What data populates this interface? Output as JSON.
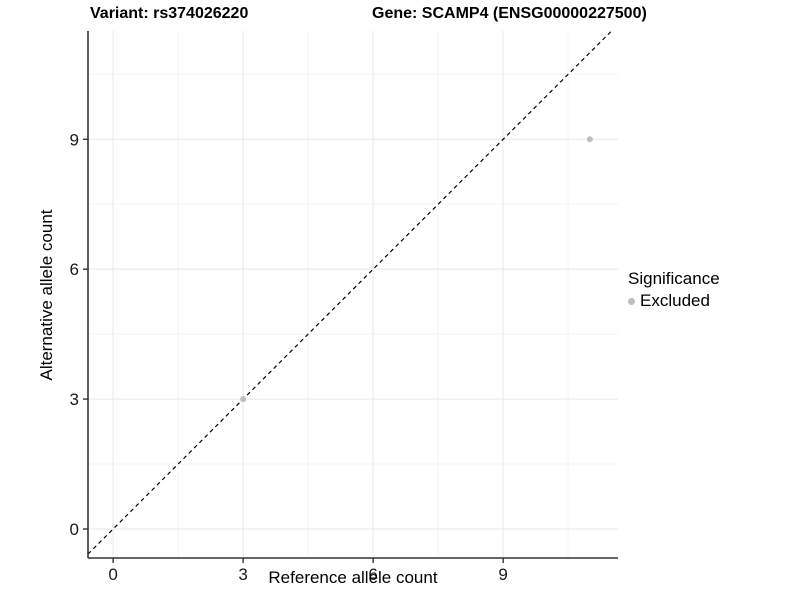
{
  "header": {
    "variant_title": "Variant: rs374026220",
    "gene_title": "Gene: SCAMP4 (ENSG00000227500)"
  },
  "chart_data": {
    "type": "scatter",
    "title": "Variant: rs374026220   Gene: SCAMP4 (ENSG00000227500)",
    "xlabel": "Reference allele count",
    "ylabel": "Alternative allele count",
    "xlim": [
      -0.58,
      11.65
    ],
    "ylim": [
      -0.67,
      11.5
    ],
    "x_major_ticks": [
      0,
      3,
      6,
      9
    ],
    "y_major_ticks": [
      0,
      3,
      6,
      9
    ],
    "x_minor_ticks": [
      1.5,
      4.5,
      7.5,
      10.5
    ],
    "y_minor_ticks": [
      1.5,
      4.5,
      7.5,
      10.5
    ],
    "grid": "on",
    "identity_line": {
      "slope": 1,
      "intercept": 0,
      "style": "dashed",
      "color": "#000000"
    },
    "series": [
      {
        "name": "Excluded",
        "color": "#bebebe",
        "points": [
          {
            "x": 3,
            "y": 3
          },
          {
            "x": 11,
            "y": 9
          }
        ]
      }
    ],
    "legend": {
      "title": "Significance",
      "position": "right",
      "items": [
        {
          "label": "Excluded",
          "color": "#bebebe"
        }
      ]
    }
  },
  "colors": {
    "background": "#ffffff",
    "axis_line": "#333333",
    "tick_text": "#1a1a1a",
    "grid_major": "#e8e8e8",
    "grid_minor": "#f4f4f4",
    "point": "#bebebe"
  }
}
